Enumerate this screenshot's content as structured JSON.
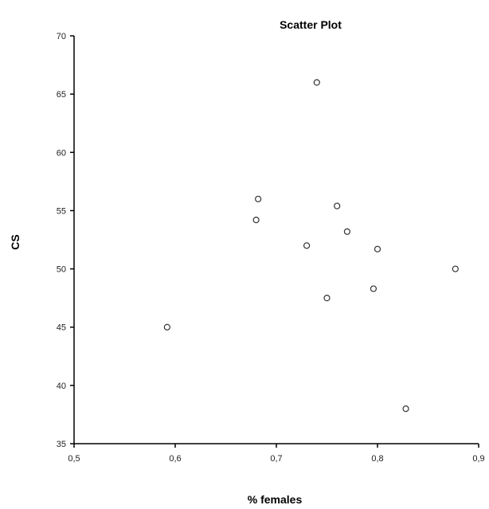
{
  "chart_data": {
    "type": "scatter",
    "title": "Scatter Plot",
    "xlabel": "% females",
    "ylabel": "CS",
    "xlim": [
      0.5,
      0.9
    ],
    "ylim": [
      35,
      70
    ],
    "xticks": [
      0.5,
      0.6,
      0.7,
      0.8,
      0.9
    ],
    "xtick_labels": [
      "0,5",
      "0,6",
      "0,7",
      "0,8",
      "0,9"
    ],
    "yticks": [
      35,
      40,
      45,
      50,
      55,
      60,
      65,
      70
    ],
    "ytick_labels": [
      "35",
      "40",
      "45",
      "50",
      "55",
      "60",
      "65",
      "70"
    ],
    "grid": false,
    "marker": "open-circle",
    "points": [
      {
        "x": 0.592,
        "y": 45.0
      },
      {
        "x": 0.68,
        "y": 54.2
      },
      {
        "x": 0.682,
        "y": 56.0
      },
      {
        "x": 0.73,
        "y": 52.0
      },
      {
        "x": 0.74,
        "y": 66.0
      },
      {
        "x": 0.75,
        "y": 47.5
      },
      {
        "x": 0.76,
        "y": 55.4
      },
      {
        "x": 0.77,
        "y": 53.2
      },
      {
        "x": 0.796,
        "y": 48.3
      },
      {
        "x": 0.8,
        "y": 51.7
      },
      {
        "x": 0.828,
        "y": 38.0
      },
      {
        "x": 0.877,
        "y": 50.0
      }
    ]
  }
}
